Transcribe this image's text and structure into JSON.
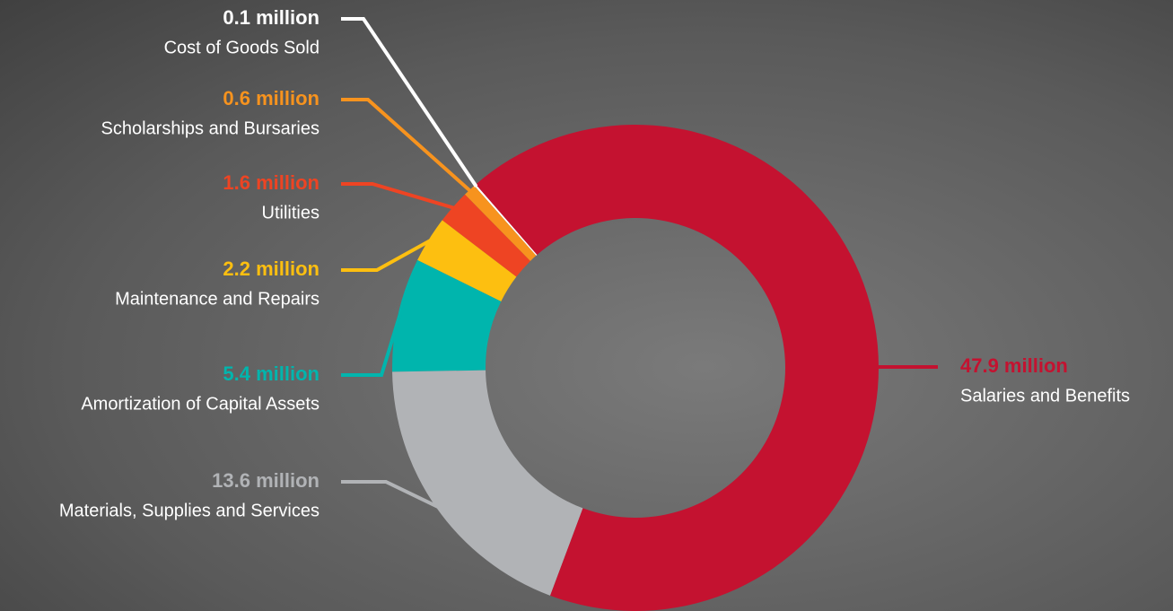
{
  "chart_data": {
    "type": "donut",
    "categories": [
      "Cost of Goods Sold",
      "Scholarships and Bursaries",
      "Utilities",
      "Maintenance and Repairs",
      "Amortization of Capital Assets",
      "Materials, Supplies and Services",
      "Salaries and Benefits"
    ],
    "values": [
      0.1,
      0.6,
      1.6,
      2.2,
      5.4,
      13.6,
      47.9
    ],
    "value_labels": [
      "0.1 million",
      "0.6 million",
      "1.6 million",
      "2.2 million",
      "5.4 million",
      "13.6 million",
      "47.9 million"
    ],
    "colors": [
      "#ffffff",
      "#f7931e",
      "#ee4423",
      "#fdbf10",
      "#00b5ad",
      "#b1b3b6",
      "#c41230"
    ]
  }
}
